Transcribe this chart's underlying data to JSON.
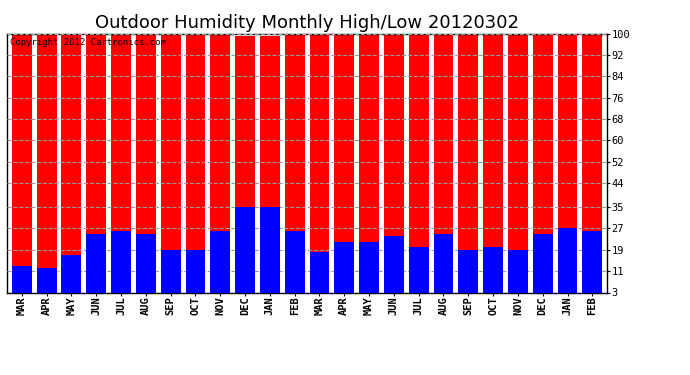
{
  "title": "Outdoor Humidity Monthly High/Low 20120302",
  "copyright_text": "Copyright 2012 Cartronics.com",
  "categories": [
    "MAR",
    "APR",
    "MAY",
    "JUN",
    "JUL",
    "AUG",
    "SEP",
    "OCT",
    "NOV",
    "DEC",
    "JAN",
    "FEB",
    "MAR",
    "APR",
    "MAY",
    "JUN",
    "JUL",
    "AUG",
    "SEP",
    "OCT",
    "NOV",
    "DEC",
    "JAN",
    "FEB"
  ],
  "highs": [
    100,
    100,
    100,
    100,
    100,
    100,
    100,
    100,
    100,
    99,
    99,
    100,
    100,
    100,
    100,
    100,
    100,
    100,
    100,
    100,
    100,
    100,
    100,
    100
  ],
  "lows": [
    13,
    12,
    17,
    25,
    26,
    25,
    19,
    19,
    26,
    35,
    35,
    26,
    18,
    22,
    22,
    24,
    20,
    25,
    19,
    20,
    19,
    25,
    27,
    26
  ],
  "bar_color_high": "#ff0000",
  "bar_color_low": "#0000ff",
  "bg_color": "#ffffff",
  "grid_color": "#999999",
  "yticks": [
    3,
    11,
    19,
    27,
    35,
    44,
    52,
    60,
    68,
    76,
    84,
    92,
    100
  ],
  "ylim_min": 3,
  "ylim_max": 100,
  "bar_width": 0.8,
  "title_fontsize": 13,
  "tick_fontsize": 7.5,
  "copyright_fontsize": 6.5
}
